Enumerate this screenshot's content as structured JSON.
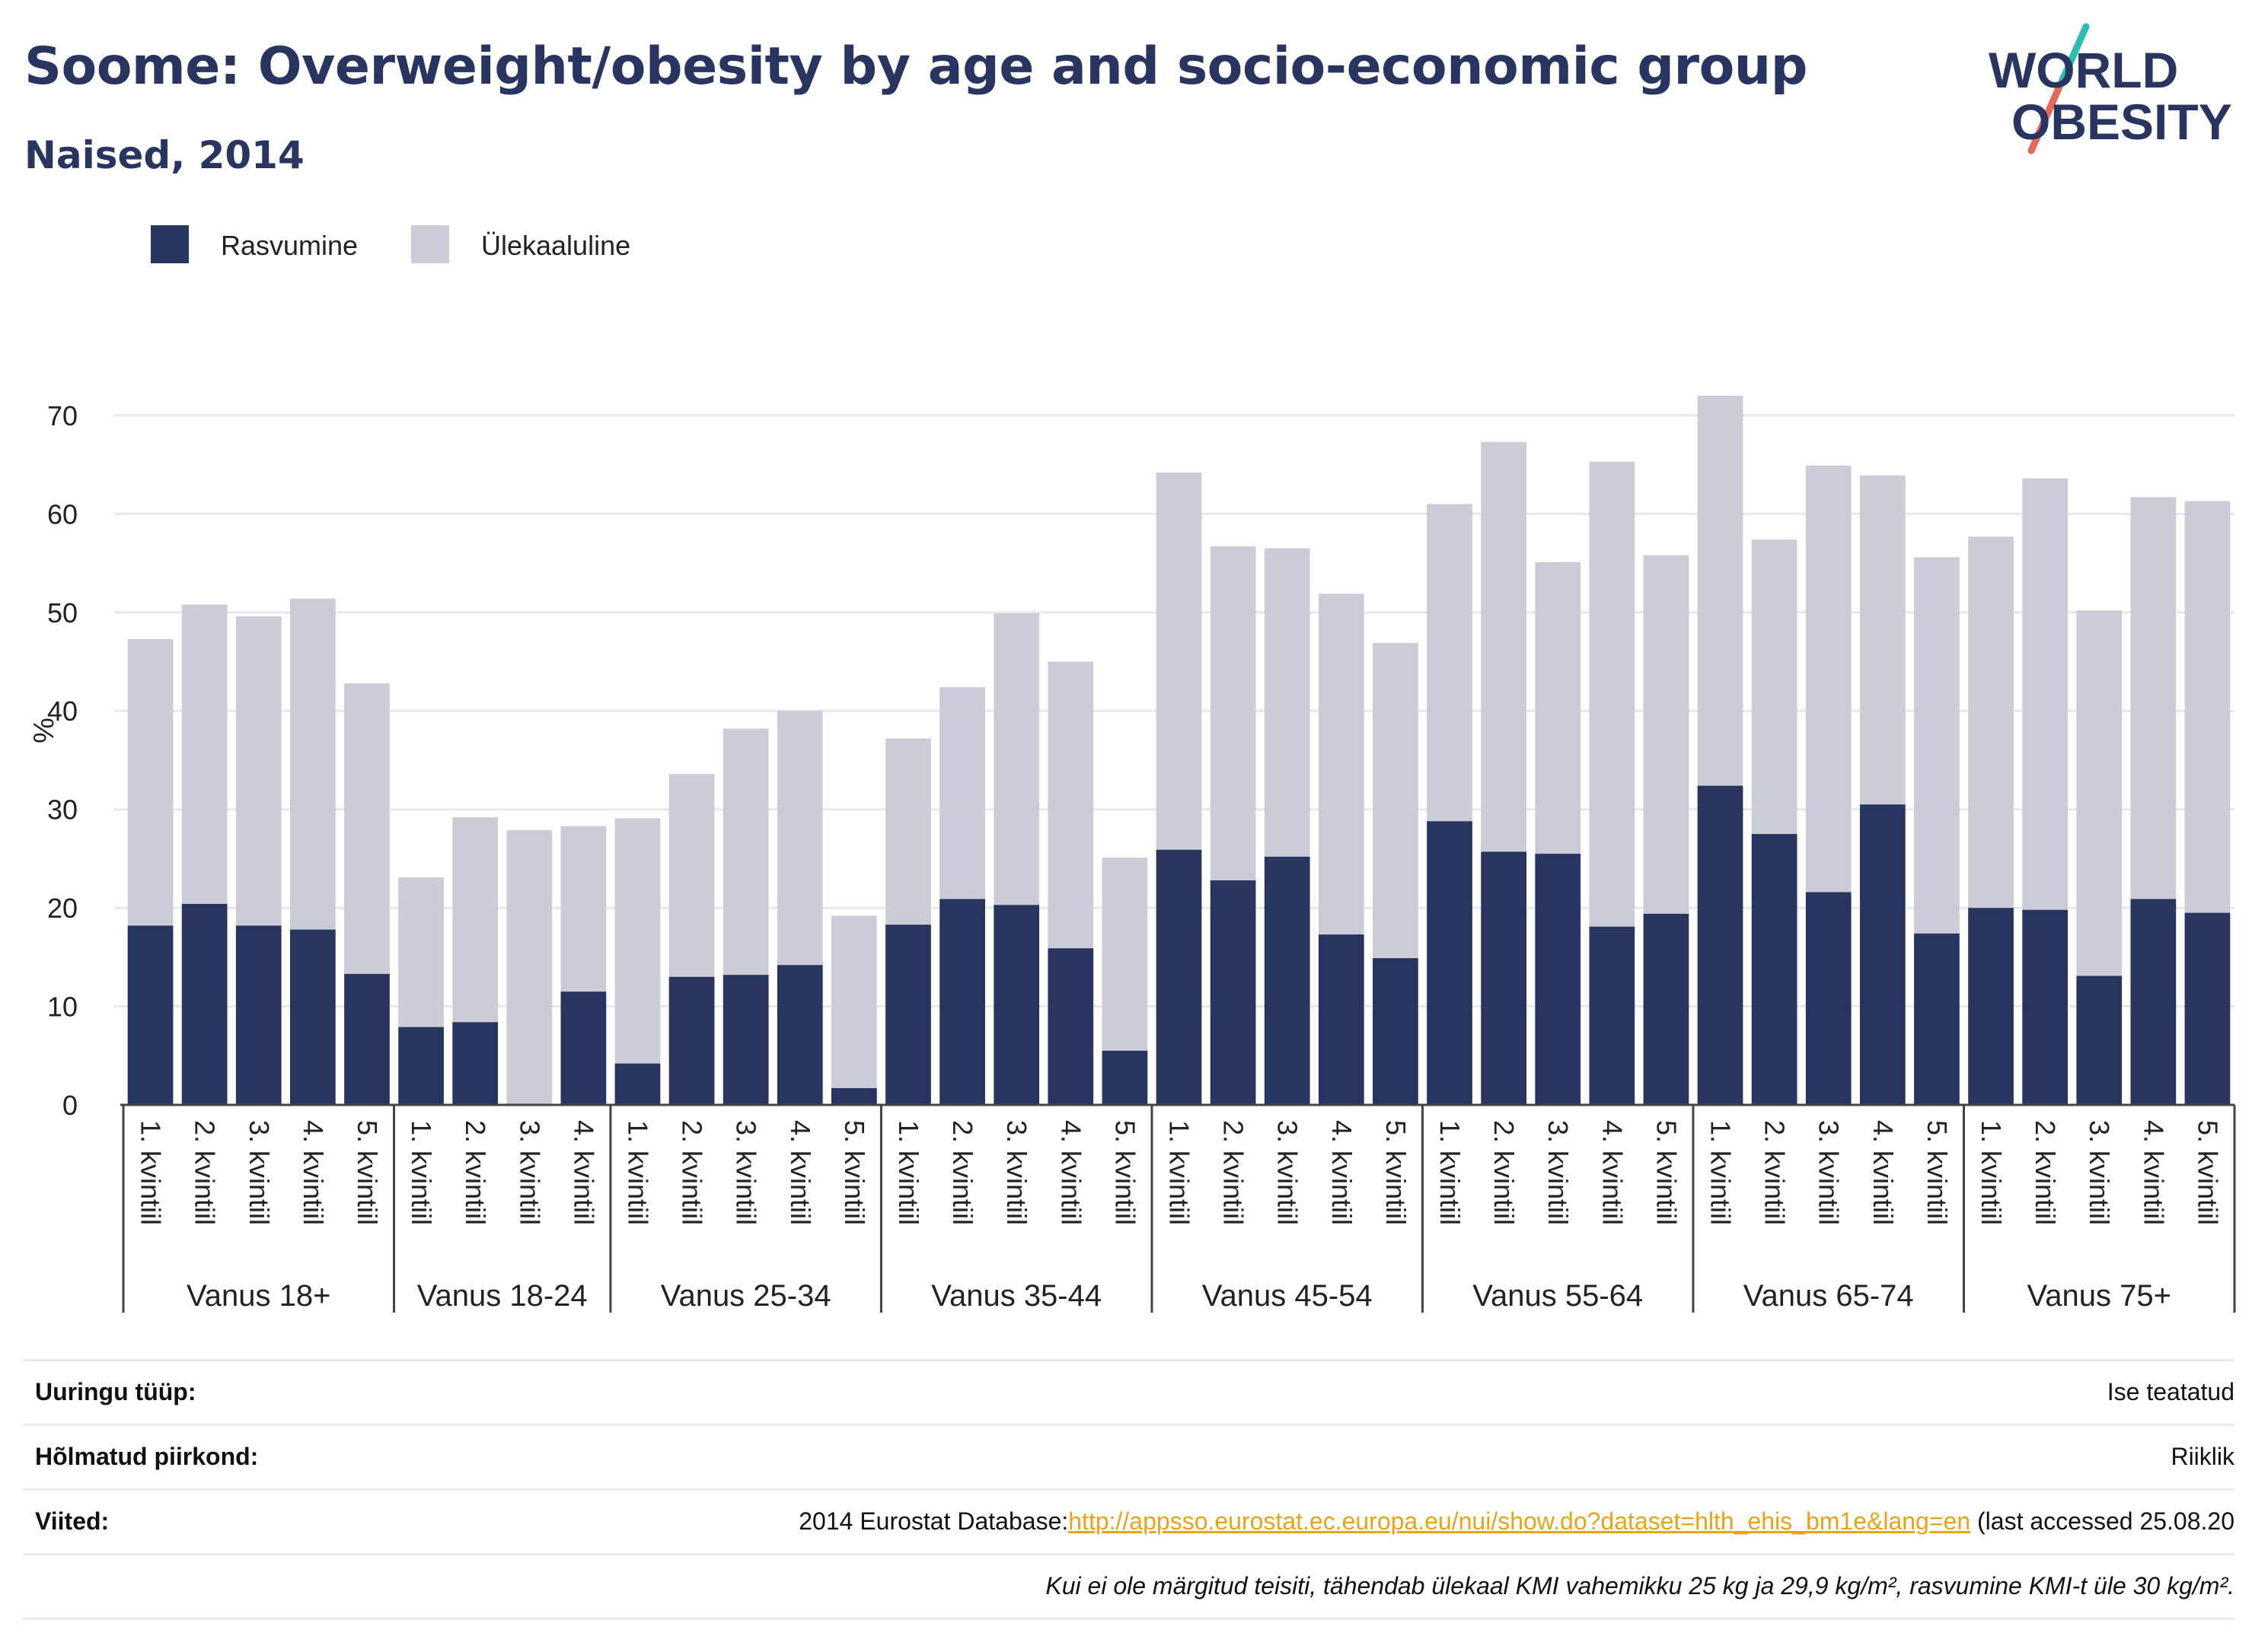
{
  "header": {
    "title": "Soome: Overweight/obesity by age and socio-economic group",
    "subtitle": "Naised, 2014"
  },
  "logo": {
    "line1": "WORLD",
    "line2": "OBESITY"
  },
  "colors": {
    "obesity": "#283561",
    "overweight": "#cbccd8",
    "title": "#283561",
    "link": "#e8a317"
  },
  "chart_data": {
    "type": "bar",
    "stacked": true,
    "ylabel": "%",
    "ylim": [
      0,
      72
    ],
    "yticks": [
      0,
      10,
      20,
      30,
      40,
      50,
      60,
      70
    ],
    "grid": true,
    "legend_position": "top-left",
    "groups": [
      {
        "label": "Vanus 18+",
        "categories": [
          "1. kvintiil",
          "2. kvintiil",
          "3. kvintiil",
          "4. kvintiil",
          "5. kvintiil"
        ]
      },
      {
        "label": "Vanus 18-24",
        "categories": [
          "1. kvintiil",
          "2. kvintiil",
          "3. kvintiil",
          "4. kvintiil"
        ]
      },
      {
        "label": "Vanus 25-34",
        "categories": [
          "1. kvintiil",
          "2. kvintiil",
          "3. kvintiil",
          "4. kvintiil",
          "5. kvintiil"
        ]
      },
      {
        "label": "Vanus 35-44",
        "categories": [
          "1. kvintiil",
          "2. kvintiil",
          "3. kvintiil",
          "4. kvintiil",
          "5. kvintiil"
        ]
      },
      {
        "label": "Vanus 45-54",
        "categories": [
          "1. kvintiil",
          "2. kvintiil",
          "3. kvintiil",
          "4. kvintiil",
          "5. kvintiil"
        ]
      },
      {
        "label": "Vanus 55-64",
        "categories": [
          "1. kvintiil",
          "2. kvintiil",
          "3. kvintiil",
          "4. kvintiil",
          "5. kvintiil"
        ]
      },
      {
        "label": "Vanus 65-74",
        "categories": [
          "1. kvintiil",
          "2. kvintiil",
          "3. kvintiil",
          "4. kvintiil",
          "5. kvintiil"
        ]
      },
      {
        "label": "Vanus 75+",
        "categories": [
          "1. kvintiil",
          "2. kvintiil",
          "3. kvintiil",
          "4. kvintiil",
          "5. kvintiil"
        ]
      }
    ],
    "series": [
      {
        "name": "Rasvumine",
        "color": "#283561",
        "values": [
          18.2,
          20.4,
          18.2,
          17.8,
          13.3,
          7.9,
          8.4,
          0,
          11.5,
          4.2,
          13.0,
          13.2,
          14.2,
          1.7,
          18.3,
          20.9,
          20.3,
          15.9,
          5.5,
          25.9,
          22.8,
          25.2,
          17.3,
          14.9,
          28.8,
          25.7,
          25.5,
          18.1,
          19.4,
          32.4,
          27.5,
          21.6,
          30.5,
          17.4,
          20.0,
          19.8,
          13.1,
          20.9,
          19.5
        ]
      },
      {
        "name": "Ülekaaluline",
        "color": "#cbccd8",
        "values": [
          29.1,
          30.4,
          31.4,
          33.6,
          29.5,
          15.2,
          20.8,
          27.9,
          16.8,
          24.9,
          20.6,
          25.0,
          25.8,
          17.5,
          18.9,
          21.5,
          29.6,
          29.1,
          19.6,
          38.3,
          33.9,
          31.3,
          34.6,
          32.0,
          32.2,
          41.6,
          29.6,
          47.2,
          36.4,
          39.6,
          29.9,
          43.3,
          33.4,
          38.2,
          37.7,
          43.8,
          37.1,
          40.8,
          41.8
        ]
      }
    ],
    "value_format": "%"
  },
  "footer": {
    "rows": [
      {
        "label": "Uuringu tüüp:",
        "value": "Ise teatatud"
      },
      {
        "label": "Hõlmatud piirkond:",
        "value": "Riiklik"
      },
      {
        "label": "Viited:",
        "value_prefix": "2014 Eurostat Database:",
        "link": "http://appsso.eurostat.ec.europa.eu/nui/show.do?dataset=hlth_ehis_bm1e&lang=en",
        "value_suffix": " (last accessed 25.08.20"
      }
    ],
    "note": "Kui ei ole märgitud teisiti, tähendab ülekaal KMI vahemikku 25 kg ja 29,9 kg/m², rasvumine KMI-t üle 30 kg/m²."
  }
}
